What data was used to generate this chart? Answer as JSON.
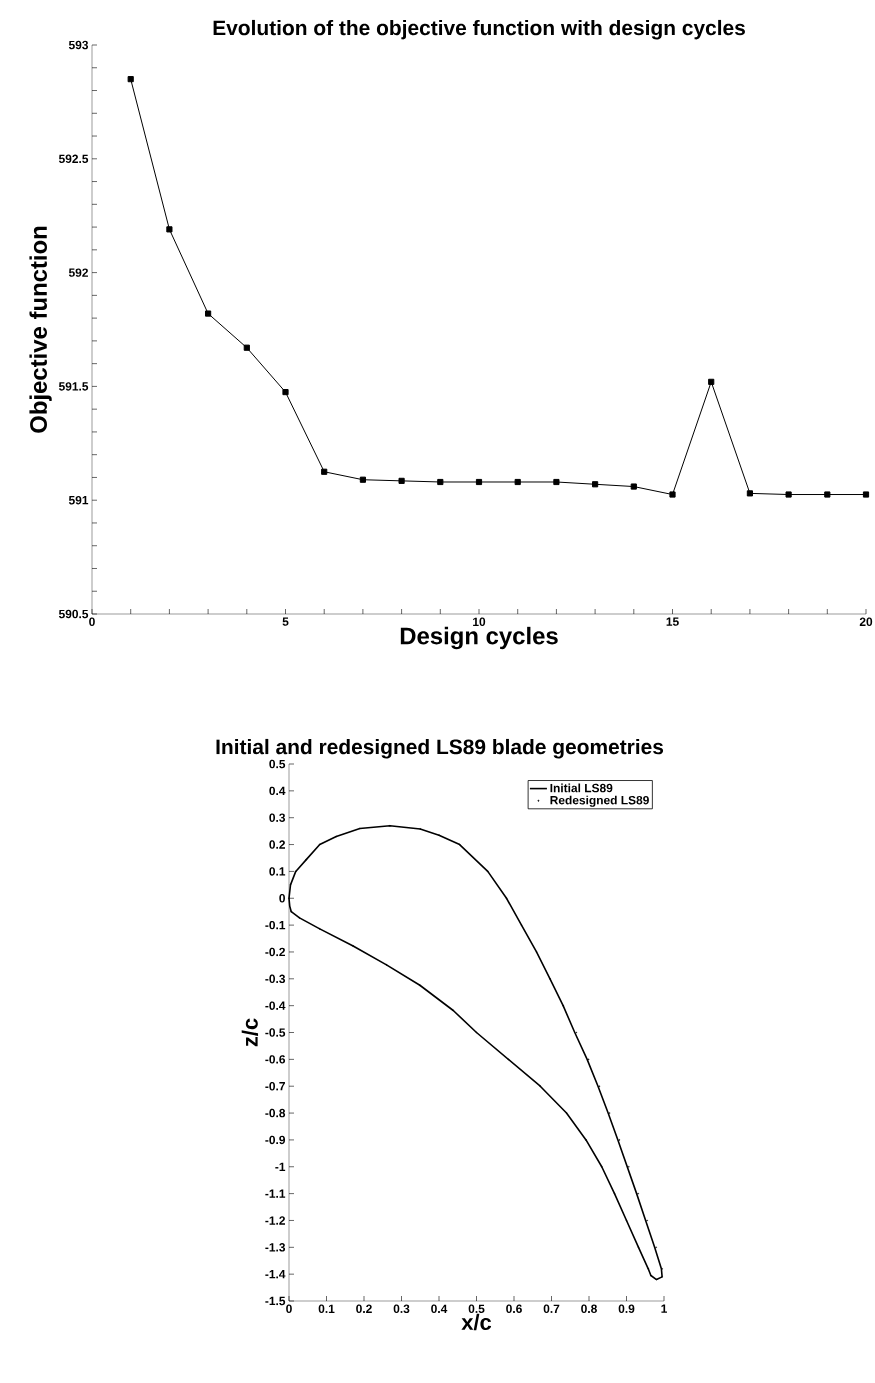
{
  "chart_data": [
    {
      "type": "line",
      "title": "Evolution of the objective function with design cycles",
      "xlabel": "Design cycles",
      "ylabel": "Objective function",
      "x": [
        1,
        2,
        3,
        4,
        5,
        6,
        7,
        8,
        9,
        10,
        11,
        12,
        13,
        14,
        15,
        16,
        17,
        18,
        19,
        20
      ],
      "series": [
        {
          "color": "#000000",
          "values": [
            592.85,
            592.19,
            591.82,
            591.67,
            591.475,
            591.125,
            591.09,
            591.085,
            591.08,
            591.08,
            591.08,
            591.08,
            591.07,
            591.06,
            591.025,
            591.52,
            591.03,
            591.025,
            591.025,
            591.025
          ]
        }
      ],
      "xlim": [
        0,
        20
      ],
      "ylim": [
        590.5,
        593
      ],
      "xticks": [
        0,
        {
          "value": 1,
          "label": null
        },
        {
          "value": 2,
          "label": null
        },
        {
          "value": 3,
          "label": null
        },
        {
          "value": 4,
          "label": null
        },
        5,
        {
          "value": 6,
          "label": null
        },
        {
          "value": 7,
          "label": null
        },
        {
          "value": 8,
          "label": null
        },
        {
          "value": 9,
          "label": null
        },
        10,
        {
          "value": 11,
          "label": null
        },
        {
          "value": 12,
          "label": null
        },
        {
          "value": 13,
          "label": null
        },
        {
          "value": 14,
          "label": null
        },
        15,
        {
          "value": 16,
          "label": null
        },
        {
          "value": 17,
          "label": null
        },
        {
          "value": 18,
          "label": null
        },
        {
          "value": 19,
          "label": null
        },
        20
      ],
      "yticks": [
        590.5,
        {
          "value": 590.6,
          "label": null
        },
        {
          "value": 590.7,
          "label": null
        },
        {
          "value": 590.8,
          "label": null
        },
        {
          "value": 590.9,
          "label": null
        },
        591,
        {
          "value": 591.1,
          "label": null
        },
        {
          "value": 591.2,
          "label": null
        },
        {
          "value": 591.3,
          "label": null
        },
        {
          "value": 591.4,
          "label": null
        },
        591.5,
        {
          "value": 591.6,
          "label": null
        },
        {
          "value": 591.7,
          "label": null
        },
        {
          "value": 591.8,
          "label": null
        },
        {
          "value": 591.9,
          "label": null
        },
        592,
        {
          "value": 592.1,
          "label": null
        },
        {
          "value": 592.2,
          "label": null
        },
        {
          "value": 592.3,
          "label": null
        },
        {
          "value": 592.4,
          "label": null
        },
        592.5,
        {
          "value": 592.6,
          "label": null
        },
        {
          "value": 592.7,
          "label": null
        },
        {
          "value": 592.8,
          "label": null
        },
        {
          "value": 592.9,
          "label": null
        },
        593
      ],
      "marker": "square",
      "line_style": "solid",
      "grid": false,
      "legend": false
    },
    {
      "type": "line",
      "title": "Initial and redesigned LS89 blade geometries",
      "xlabel": "x/c",
      "ylabel": "z/c",
      "series": [
        {
          "name": "Initial LS89",
          "type": "line",
          "marker": "none",
          "color": "#000000",
          "x": [
            0,
            0.004,
            0.018,
            0.046,
            0.082,
            0.126,
            0.189,
            0.269,
            0.35,
            0.4,
            0.455,
            0.53,
            0.58,
            0.62,
            0.66,
            0.696,
            0.731,
            0.762,
            0.795,
            0.824,
            0.851,
            0.877,
            0.902,
            0.927,
            0.951,
            0.975,
            0.993,
            0.995
          ],
          "values": [
            0,
            0.05,
            0.1,
            0.144,
            0.2,
            0.23,
            0.26,
            0.27,
            0.258,
            0.235,
            0.2,
            0.1,
            0,
            -0.1,
            -0.2,
            -0.3,
            -0.4,
            -0.5,
            -0.6,
            -0.7,
            -0.8,
            -0.9,
            -1.0,
            -1.1,
            -1.2,
            -1.3,
            -1.38,
            -1.41
          ]
        },
        {
          "type": "line",
          "marker": "none",
          "color": "#000000",
          "x": [
            0,
            0.002,
            0.006,
            0.028,
            0.082,
            0.171,
            0.26,
            0.349,
            0.438,
            0.5,
            0.585,
            0.67,
            0.74,
            0.792,
            0.834,
            0.868,
            0.9,
            0.932,
            0.958,
            0.965,
            0.98,
            0.995
          ],
          "values": [
            0,
            -0.03,
            -0.05,
            -0.073,
            -0.114,
            -0.178,
            -0.248,
            -0.324,
            -0.418,
            -0.5,
            -0.6,
            -0.7,
            -0.8,
            -0.9,
            -1.0,
            -1.1,
            -1.2,
            -1.3,
            -1.38,
            -1.405,
            -1.42,
            -1.41
          ]
        },
        {
          "name": "Redesigned LS89",
          "type": "scatter",
          "marker": "circle",
          "color": "#000000",
          "x": [
            0,
            0.004,
            0.018,
            0.046,
            0.082,
            0.126,
            0.189,
            0.269,
            0.35,
            0.4,
            0.455,
            0.53,
            0.58,
            0.62,
            0.66,
            0.696,
            0.731,
            0.766,
            0.799,
            0.828,
            0.855,
            0.881,
            0.906,
            0.931,
            0.955,
            0.979,
            0.995,
            0.995,
            0.98,
            0.965,
            0.958,
            0.932,
            0.9,
            0.868,
            0.834,
            0.792,
            0.74,
            0.67,
            0.585,
            0.5,
            0.438,
            0.349,
            0.26,
            0.171,
            0.082,
            0.028,
            0.006
          ],
          "values": [
            0,
            0.05,
            0.1,
            0.144,
            0.2,
            0.23,
            0.26,
            0.27,
            0.258,
            0.235,
            0.2,
            0.1,
            0,
            -0.1,
            -0.2,
            -0.3,
            -0.4,
            -0.5,
            -0.6,
            -0.7,
            -0.8,
            -0.9,
            -1.0,
            -1.1,
            -1.2,
            -1.3,
            -1.38,
            -1.41,
            -1.42,
            -1.405,
            -1.38,
            -1.3,
            -1.2,
            -1.1,
            -1.0,
            -0.9,
            -0.8,
            -0.7,
            -0.6,
            -0.5,
            -0.418,
            -0.324,
            -0.248,
            -0.178,
            -0.114,
            -0.073,
            -0.05
          ]
        }
      ],
      "xlim": [
        0,
        1
      ],
      "ylim": [
        -1.5,
        0.5
      ],
      "xticks": [
        0,
        0.1,
        0.2,
        0.3,
        0.4,
        0.5,
        0.6,
        0.7,
        0.8,
        0.9,
        1
      ],
      "yticks": [
        -1.5,
        -1.4,
        -1.3,
        -1.2,
        -1.1,
        -1,
        -0.9,
        -0.8,
        -0.7,
        -0.6,
        -0.5,
        -0.4,
        -0.3,
        -0.2,
        -0.1,
        0,
        0.1,
        0.2,
        0.3,
        0.4,
        0.5
      ],
      "grid": false,
      "legend": "top right"
    }
  ]
}
